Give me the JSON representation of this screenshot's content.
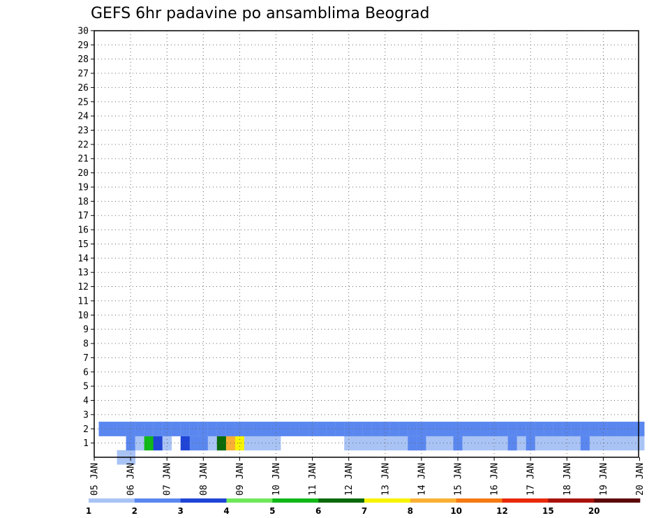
{
  "chart_data": {
    "type": "heatmap",
    "title": "GEFS 6hr padavine po ansamblima Beograd",
    "x_ticks": [
      "05 JAN",
      "06 JAN",
      "07 JAN",
      "08 JAN",
      "09 JAN",
      "10 JAN",
      "11 JAN",
      "12 JAN",
      "13 JAN",
      "14 JAN",
      "15 JAN",
      "16 JAN",
      "17 JAN",
      "18 JAN",
      "19 JAN",
      "20 JAN"
    ],
    "y_ticks": [
      "1",
      "2",
      "3",
      "4",
      "5",
      "6",
      "7",
      "8",
      "9",
      "10",
      "11",
      "12",
      "13",
      "14",
      "15",
      "16",
      "17",
      "18",
      "19",
      "20",
      "21",
      "22",
      "23",
      "24",
      "25",
      "26",
      "27",
      "28",
      "29",
      "30"
    ],
    "xlim": [
      0,
      60
    ],
    "ylim": [
      0,
      30
    ],
    "grid": true,
    "colorbar": {
      "labels": [
        "1",
        "2",
        "3",
        "4",
        "5",
        "6",
        "7",
        "8",
        "10",
        "12",
        "15",
        "20"
      ],
      "colors": [
        "#a9c3f5",
        "#5a87ef",
        "#1f44d6",
        "#6ee85a",
        "#10b818",
        "#0a6a0a",
        "#f7f400",
        "#f9b034",
        "#f57a12",
        "#e82a0a",
        "#a8120c",
        "#5c0808"
      ]
    },
    "cells": [
      [
        3,
        0,
        0
      ],
      [
        4,
        0,
        0
      ],
      [
        4,
        1,
        1
      ],
      [
        5,
        1,
        0
      ],
      [
        6,
        1,
        4
      ],
      [
        7,
        1,
        2
      ],
      [
        8,
        1,
        0
      ],
      [
        10,
        1,
        2
      ],
      [
        11,
        1,
        1
      ],
      [
        12,
        1,
        1
      ],
      [
        13,
        1,
        0
      ],
      [
        14,
        1,
        0
      ],
      [
        14,
        1,
        5
      ],
      [
        15,
        1,
        7
      ],
      [
        16,
        1,
        6
      ],
      [
        17,
        1,
        0
      ],
      [
        18,
        1,
        0
      ],
      [
        19,
        1,
        0
      ],
      [
        20,
        1,
        0
      ],
      [
        28,
        1,
        0
      ],
      [
        29,
        1,
        0
      ],
      [
        30,
        1,
        0
      ],
      [
        31,
        1,
        0
      ],
      [
        32,
        1,
        0
      ],
      [
        33,
        1,
        0
      ],
      [
        34,
        1,
        0
      ],
      [
        35,
        1,
        0
      ],
      [
        35,
        1,
        1
      ],
      [
        36,
        1,
        0
      ],
      [
        36,
        1,
        1
      ],
      [
        37,
        1,
        0
      ],
      [
        38,
        1,
        0
      ],
      [
        39,
        1,
        0
      ],
      [
        40,
        1,
        0
      ],
      [
        40,
        1,
        1
      ],
      [
        41,
        1,
        0
      ],
      [
        42,
        1,
        0
      ],
      [
        43,
        1,
        0
      ],
      [
        44,
        1,
        0
      ],
      [
        45,
        1,
        0
      ],
      [
        46,
        1,
        0
      ],
      [
        46,
        1,
        1
      ],
      [
        47,
        1,
        0
      ],
      [
        48,
        1,
        0
      ],
      [
        48,
        1,
        1
      ],
      [
        49,
        1,
        0
      ],
      [
        50,
        1,
        0
      ],
      [
        51,
        1,
        0
      ],
      [
        52,
        1,
        0
      ],
      [
        53,
        1,
        0
      ],
      [
        54,
        1,
        0
      ],
      [
        54,
        1,
        1
      ],
      [
        55,
        1,
        0
      ],
      [
        56,
        1,
        0
      ],
      [
        57,
        1,
        0
      ],
      [
        58,
        1,
        0
      ],
      [
        59,
        1,
        0
      ],
      [
        60,
        1,
        0
      ],
      [
        1,
        2,
        0
      ],
      [
        1,
        2,
        1
      ],
      [
        2,
        2,
        0
      ],
      [
        2,
        2,
        1
      ],
      [
        3,
        2,
        0
      ],
      [
        3,
        2,
        1
      ],
      [
        4,
        2,
        0
      ],
      [
        4,
        2,
        1
      ],
      [
        5,
        2,
        0
      ],
      [
        5,
        2,
        1
      ],
      [
        6,
        2,
        0
      ],
      [
        6,
        2,
        1
      ],
      [
        7,
        2,
        0
      ],
      [
        7,
        2,
        1
      ],
      [
        8,
        2,
        0
      ],
      [
        8,
        2,
        1
      ],
      [
        9,
        2,
        0
      ],
      [
        9,
        2,
        1
      ],
      [
        10,
        2,
        0
      ],
      [
        10,
        2,
        1
      ],
      [
        11,
        2,
        0
      ],
      [
        11,
        2,
        1
      ],
      [
        12,
        2,
        0
      ],
      [
        12,
        2,
        1
      ],
      [
        13,
        2,
        0
      ],
      [
        13,
        2,
        1
      ],
      [
        14,
        2,
        0
      ],
      [
        14,
        2,
        1
      ],
      [
        15,
        2,
        0
      ],
      [
        15,
        2,
        1
      ],
      [
        16,
        2,
        0
      ],
      [
        16,
        2,
        1
      ],
      [
        17,
        2,
        0
      ],
      [
        17,
        2,
        1
      ],
      [
        18,
        2,
        0
      ],
      [
        18,
        2,
        1
      ],
      [
        19,
        2,
        0
      ],
      [
        19,
        2,
        1
      ],
      [
        20,
        2,
        0
      ],
      [
        20,
        2,
        1
      ],
      [
        21,
        2,
        0
      ],
      [
        21,
        2,
        1
      ],
      [
        22,
        2,
        0
      ],
      [
        22,
        2,
        1
      ],
      [
        23,
        2,
        0
      ],
      [
        23,
        2,
        1
      ],
      [
        24,
        2,
        0
      ],
      [
        24,
        2,
        1
      ],
      [
        25,
        2,
        0
      ],
      [
        25,
        2,
        1
      ],
      [
        26,
        2,
        0
      ],
      [
        26,
        2,
        1
      ],
      [
        27,
        2,
        0
      ],
      [
        27,
        2,
        1
      ],
      [
        28,
        2,
        0
      ],
      [
        28,
        2,
        1
      ],
      [
        29,
        2,
        0
      ],
      [
        29,
        2,
        1
      ],
      [
        30,
        2,
        0
      ],
      [
        30,
        2,
        1
      ],
      [
        31,
        2,
        0
      ],
      [
        31,
        2,
        1
      ],
      [
        32,
        2,
        0
      ],
      [
        32,
        2,
        1
      ],
      [
        33,
        2,
        0
      ],
      [
        33,
        2,
        1
      ],
      [
        34,
        2,
        0
      ],
      [
        34,
        2,
        1
      ],
      [
        35,
        2,
        0
      ],
      [
        35,
        2,
        1
      ],
      [
        36,
        2,
        0
      ],
      [
        36,
        2,
        1
      ],
      [
        37,
        2,
        0
      ],
      [
        37,
        2,
        1
      ],
      [
        38,
        2,
        0
      ],
      [
        38,
        2,
        1
      ],
      [
        39,
        2,
        0
      ],
      [
        39,
        2,
        1
      ],
      [
        40,
        2,
        0
      ],
      [
        40,
        2,
        1
      ],
      [
        41,
        2,
        0
      ],
      [
        41,
        2,
        1
      ],
      [
        42,
        2,
        0
      ],
      [
        42,
        2,
        1
      ],
      [
        43,
        2,
        0
      ],
      [
        43,
        2,
        1
      ],
      [
        44,
        2,
        0
      ],
      [
        44,
        2,
        1
      ],
      [
        45,
        2,
        0
      ],
      [
        45,
        2,
        1
      ],
      [
        46,
        2,
        0
      ],
      [
        46,
        2,
        1
      ],
      [
        47,
        2,
        0
      ],
      [
        47,
        2,
        1
      ],
      [
        48,
        2,
        0
      ],
      [
        48,
        2,
        1
      ],
      [
        49,
        2,
        0
      ],
      [
        49,
        2,
        1
      ],
      [
        50,
        2,
        0
      ],
      [
        50,
        2,
        1
      ],
      [
        51,
        2,
        0
      ],
      [
        51,
        2,
        1
      ],
      [
        52,
        2,
        0
      ],
      [
        52,
        2,
        1
      ],
      [
        53,
        2,
        0
      ],
      [
        53,
        2,
        1
      ],
      [
        54,
        2,
        0
      ],
      [
        54,
        2,
        1
      ],
      [
        55,
        2,
        0
      ],
      [
        55,
        2,
        1
      ],
      [
        56,
        2,
        0
      ],
      [
        56,
        2,
        1
      ],
      [
        57,
        2,
        0
      ],
      [
        57,
        2,
        1
      ],
      [
        58,
        2,
        0
      ],
      [
        58,
        2,
        1
      ],
      [
        59,
        2,
        0
      ],
      [
        59,
        2,
        1
      ],
      [
        60,
        2,
        0
      ],
      [
        60,
        2,
        1
      ]
    ]
  }
}
